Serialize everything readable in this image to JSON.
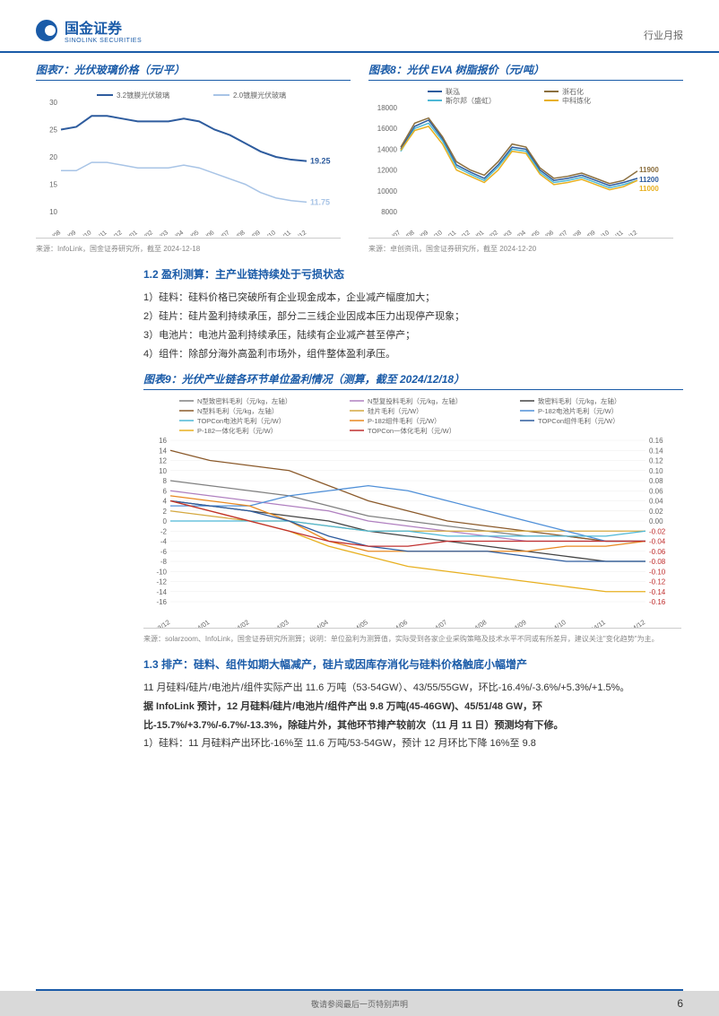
{
  "header": {
    "logo_cn": "国金证券",
    "logo_en": "SINOLINK SECURITIES",
    "right": "行业月报"
  },
  "chart7": {
    "title": "图表7：光伏玻璃价格（元/平）",
    "type": "line",
    "legend": [
      "3.2镀膜光伏玻璃",
      "2.0镀膜光伏玻璃"
    ],
    "legend_colors": [
      "#2e5c9e",
      "#a8c4e6"
    ],
    "x_labels": [
      "23/08",
      "23/09",
      "23/10",
      "23/11",
      "23/12",
      "24/01",
      "24/02",
      "24/03",
      "24/04",
      "24/05",
      "24/06",
      "24/07",
      "24/08",
      "24/09",
      "24/10",
      "24/11",
      "24/12"
    ],
    "series": [
      {
        "name": "3.2",
        "color": "#2e5c9e",
        "width": 2,
        "values": [
          25,
          25.5,
          27.5,
          27.5,
          27,
          26.5,
          26.5,
          26.5,
          27,
          26.5,
          25,
          24,
          22.5,
          21,
          20,
          19.5,
          19.25
        ],
        "end_label": "19.25"
      },
      {
        "name": "2.0",
        "color": "#a8c4e6",
        "width": 1.5,
        "values": [
          17.5,
          17.5,
          19,
          19,
          18.5,
          18,
          18,
          18,
          18.5,
          18,
          17,
          16,
          15,
          13.5,
          12.5,
          12,
          11.75
        ],
        "end_label": "11.75"
      }
    ],
    "ylim": [
      10,
      30
    ],
    "ytick_step": 5,
    "background": "#ffffff",
    "source": "来源：InfoLink，国金证券研究所，截至 2024-12-18"
  },
  "chart8": {
    "title": "图表8：光伏 EVA 树脂报价（元/吨）",
    "type": "line",
    "legend": [
      "联泓",
      "浙石化",
      "斯尔邦（盛虹）",
      "中科炼化"
    ],
    "legend_colors": [
      "#2e5c9e",
      "#8b6f3e",
      "#4db8d6",
      "#e8b020"
    ],
    "x_labels": [
      "23/07",
      "23/08",
      "23/09",
      "23/10",
      "23/11",
      "23/12",
      "24/01",
      "24/02",
      "24/03",
      "24/04",
      "24/05",
      "24/06",
      "24/07",
      "24/08",
      "24/09",
      "24/10",
      "24/11",
      "24/12"
    ],
    "series": [
      {
        "name": "联泓",
        "color": "#2e5c9e",
        "width": 1.5,
        "values": [
          14000,
          16200,
          16800,
          15000,
          12500,
          11800,
          11200,
          12500,
          14200,
          14000,
          12000,
          11000,
          11200,
          11500,
          11000,
          10500,
          10800,
          11200
        ],
        "end_label": "11200"
      },
      {
        "name": "浙石化",
        "color": "#8b6f3e",
        "width": 1.5,
        "values": [
          14200,
          16500,
          17000,
          15200,
          12800,
          12000,
          11500,
          12800,
          14500,
          14200,
          12200,
          11200,
          11400,
          11700,
          11200,
          10700,
          11000,
          11900
        ],
        "end_label": "11900"
      },
      {
        "name": "斯尔邦",
        "color": "#4db8d6",
        "width": 1.5,
        "values": [
          13800,
          16000,
          16500,
          14800,
          12300,
          11600,
          11000,
          12300,
          14000,
          13800,
          11800,
          10800,
          11000,
          11300,
          10800,
          10300,
          10600,
          11000
        ],
        "end_label": ""
      },
      {
        "name": "中科炼化",
        "color": "#e8b020",
        "width": 1.5,
        "values": [
          13900,
          15800,
          16200,
          14500,
          12000,
          11400,
          10800,
          12000,
          13800,
          13600,
          11600,
          10600,
          10800,
          11100,
          10600,
          10100,
          10400,
          11000
        ],
        "end_label": "11000"
      }
    ],
    "ylim": [
      8000,
      18000
    ],
    "ytick_step": 2000,
    "background": "#ffffff",
    "source": "来源：卓创资讯，国金证券研究所，截至 2024-12-20"
  },
  "section12": {
    "heading": "1.2 盈利测算：主产业链持续处于亏损状态",
    "lines": [
      "1）硅料：硅料价格已突破所有企业现金成本，企业减产幅度加大；",
      "2）硅片：硅片盈利持续承压，部分二三线企业因成本压力出现停产现象；",
      "3）电池片：电池片盈利持续承压，陆续有企业减产甚至停产；",
      "4）组件：除部分海外高盈利市场外，组件整体盈利承压。"
    ]
  },
  "chart9": {
    "title": "图表9：光伏产业链各环节单位盈利情况（测算，截至 2024/12/18）",
    "type": "line",
    "legend": [
      {
        "name": "N型致密料毛利（元/kg，左轴）",
        "color": "#808080"
      },
      {
        "name": "N型复投料毛利（元/kg，左轴）",
        "color": "#b080c0"
      },
      {
        "name": "致密料毛利（元/kg，左轴）",
        "color": "#444444"
      },
      {
        "name": "N型料毛利（元/kg，左轴）",
        "color": "#8b5a2b"
      },
      {
        "name": "硅片毛利（元/W）",
        "color": "#d4a840"
      },
      {
        "name": "P-182电池片毛利（元/W）",
        "color": "#5090d8"
      },
      {
        "name": "TOPCon电池片毛利（元/W）",
        "color": "#4db8d6"
      },
      {
        "name": "P-182组件毛利（元/W）",
        "color": "#e88820"
      },
      {
        "name": "TOPCon组件毛利（元/W）",
        "color": "#2e5c9e"
      },
      {
        "name": "P-182一体化毛利（元/W）",
        "color": "#e8b020"
      },
      {
        "name": "TOPCon一体化毛利（元/W）",
        "color": "#c03030"
      }
    ],
    "x_labels": [
      "2023/12",
      "2024/01",
      "2024/02",
      "2024/03",
      "2024/04",
      "2024/05",
      "2024/06",
      "2024/07",
      "2024/08",
      "2024/09",
      "2024/10",
      "2024/11",
      "2024/12"
    ],
    "left_ylim": [
      -16,
      16
    ],
    "left_ytick_step": 2,
    "right_ylim": [
      -0.16,
      0.16
    ],
    "right_ytick_step": 0.02,
    "right_labels": [
      "-0.02",
      "-0.04",
      "-0.06",
      "-0.08",
      "-0.10",
      "-0.12",
      "-0.14",
      "-0.16"
    ],
    "right_label_color": "#c03030",
    "series_left": [
      {
        "color": "#808080",
        "values": [
          8,
          7,
          6,
          5,
          3,
          1,
          0,
          -1,
          -2,
          -3,
          -3,
          -4,
          -4
        ]
      },
      {
        "color": "#b080c0",
        "values": [
          6,
          5,
          4,
          3,
          2,
          0,
          -1,
          -2,
          -3,
          -4,
          -4,
          -4,
          -4
        ]
      },
      {
        "color": "#444444",
        "values": [
          4,
          3,
          2,
          1,
          0,
          -2,
          -3,
          -4,
          -5,
          -6,
          -7,
          -8,
          -8
        ]
      },
      {
        "color": "#8b5a2b",
        "values": [
          14,
          12,
          11,
          10,
          7,
          4,
          2,
          0,
          -1,
          -2,
          -3,
          -4,
          -4
        ]
      }
    ],
    "series_right": [
      {
        "color": "#d4a840",
        "values": [
          0.02,
          0.01,
          0,
          0,
          -0.01,
          -0.02,
          -0.02,
          -0.02,
          -0.02,
          -0.02,
          -0.02,
          -0.02,
          -0.02
        ]
      },
      {
        "color": "#5090d8",
        "values": [
          0.03,
          0.03,
          0.03,
          0.05,
          0.06,
          0.07,
          0.06,
          0.04,
          0.02,
          0,
          -0.02,
          -0.04,
          -0.04
        ]
      },
      {
        "color": "#4db8d6",
        "values": [
          0,
          0,
          0,
          0,
          -0.01,
          -0.02,
          -0.02,
          -0.03,
          -0.03,
          -0.03,
          -0.03,
          -0.03,
          -0.02
        ]
      },
      {
        "color": "#e88820",
        "values": [
          0.05,
          0.04,
          0.03,
          0,
          -0.04,
          -0.06,
          -0.06,
          -0.06,
          -0.06,
          -0.06,
          -0.05,
          -0.05,
          -0.04
        ]
      },
      {
        "color": "#2e5c9e",
        "values": [
          0.04,
          0.03,
          0.02,
          0,
          -0.03,
          -0.05,
          -0.06,
          -0.06,
          -0.06,
          -0.07,
          -0.08,
          -0.08,
          -0.08
        ]
      },
      {
        "color": "#e8b020",
        "values": [
          0.04,
          0.02,
          0,
          -0.02,
          -0.05,
          -0.07,
          -0.09,
          -0.1,
          -0.11,
          -0.12,
          -0.13,
          -0.14,
          -0.14
        ]
      },
      {
        "color": "#c03030",
        "values": [
          0.04,
          0.02,
          0,
          -0.02,
          -0.04,
          -0.05,
          -0.05,
          -0.04,
          -0.04,
          -0.04,
          -0.04,
          -0.04,
          -0.04
        ]
      }
    ],
    "background": "#ffffff",
    "source": "来源：solarzoom、InfoLink，国金证券研究所测算；说明：单位盈利为测算值，实际受到各家企业采购策略及技术水平不同或有所差异，建议关注\"变化趋势\"为主。"
  },
  "section13": {
    "heading": "1.3 排产：硅料、组件如期大幅减产，硅片或因库存消化与硅料价格触底小幅增产",
    "para1": "11 月硅料/硅片/电池片/组件实际产出 11.6 万吨（53-54GW）、43/55/55GW，环比-16.4%/-3.6%/+5.3%/+1.5%。",
    "para2": "据 InfoLink 预计，12 月硅料/硅片/电池片/组件产出 9.8 万吨(45-46GW)、45/51/48 GW，环比-15.7%/+3.7%/-6.7%/-13.3%，除硅片外，其他环节排产较前次（11 月 11 日）预测均有下修。",
    "para3": "1）硅料：11 月硅料产出环比-16%至 11.6 万吨/53-54GW，预计 12 月环比下降 16%至 9.8"
  },
  "footer": {
    "text": "敬请参阅最后一页特别声明",
    "page": "6"
  }
}
